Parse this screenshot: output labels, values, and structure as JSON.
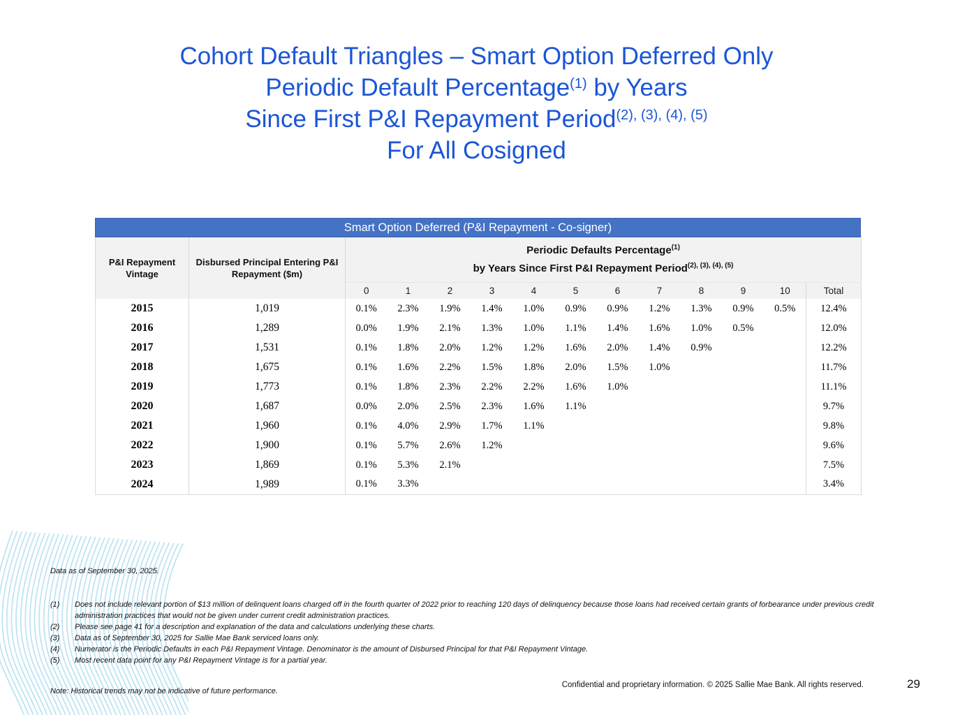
{
  "title": {
    "line1": "Cohort Default Triangles – Smart Option Deferred Only",
    "line2_text": "Periodic Default Percentage",
    "line2_sup": "(1)",
    "line2_tail": " by Years",
    "line3_text": "Since First P&I Repayment Period",
    "line3_sup": "(2), (3), (4), (5)",
    "line4": "For All Cosigned"
  },
  "table": {
    "banner": "Smart Option Deferred (P&I Repayment - Co-signer)",
    "vintage_header": "P&I Repayment Vintage",
    "disbursed_header": "Disbursed Principal Entering P&I Repayment ($m)",
    "group_header": {
      "line1": "Periodic Defaults Percentage",
      "line1_sup": "(1)",
      "line2": "by Years Since First P&I Repayment Period",
      "line2_sup": "(2), (3), (4), (5)"
    },
    "year_columns": [
      "0",
      "1",
      "2",
      "3",
      "4",
      "5",
      "6",
      "7",
      "8",
      "9",
      "10"
    ],
    "total_column": "Total",
    "rows": [
      {
        "vintage": "2015",
        "disbursed": "1,019",
        "values": [
          "0.1%",
          "2.3%",
          "1.9%",
          "1.4%",
          "1.0%",
          "0.9%",
          "0.9%",
          "1.2%",
          "1.3%",
          "0.9%",
          "0.5%"
        ],
        "total": "12.4%"
      },
      {
        "vintage": "2016",
        "disbursed": "1,289",
        "values": [
          "0.0%",
          "1.9%",
          "2.1%",
          "1.3%",
          "1.0%",
          "1.1%",
          "1.4%",
          "1.6%",
          "1.0%",
          "0.5%"
        ],
        "total": "12.0%"
      },
      {
        "vintage": "2017",
        "disbursed": "1,531",
        "values": [
          "0.1%",
          "1.8%",
          "2.0%",
          "1.2%",
          "1.2%",
          "1.6%",
          "2.0%",
          "1.4%",
          "0.9%"
        ],
        "total": "12.2%"
      },
      {
        "vintage": "2018",
        "disbursed": "1,675",
        "values": [
          "0.1%",
          "1.6%",
          "2.2%",
          "1.5%",
          "1.8%",
          "2.0%",
          "1.5%",
          "1.0%"
        ],
        "total": "11.7%"
      },
      {
        "vintage": "2019",
        "disbursed": "1,773",
        "values": [
          "0.1%",
          "1.8%",
          "2.3%",
          "2.2%",
          "2.2%",
          "1.6%",
          "1.0%"
        ],
        "total": "11.1%"
      },
      {
        "vintage": "2020",
        "disbursed": "1,687",
        "values": [
          "0.0%",
          "2.0%",
          "2.5%",
          "2.3%",
          "1.6%",
          "1.1%"
        ],
        "total": "9.7%"
      },
      {
        "vintage": "2021",
        "disbursed": "1,960",
        "values": [
          "0.1%",
          "4.0%",
          "2.9%",
          "1.7%",
          "1.1%"
        ],
        "total": "9.8%"
      },
      {
        "vintage": "2022",
        "disbursed": "1,900",
        "values": [
          "0.1%",
          "5.7%",
          "2.6%",
          "1.2%"
        ],
        "total": "9.6%"
      },
      {
        "vintage": "2023",
        "disbursed": "1,869",
        "values": [
          "0.1%",
          "5.3%",
          "2.1%"
        ],
        "total": "7.5%"
      },
      {
        "vintage": "2024",
        "disbursed": "1,989",
        "values": [
          "0.1%",
          "3.3%"
        ],
        "total": "3.4%"
      }
    ]
  },
  "footnotes": {
    "data_as_of": "Data as of September 30, 2025.",
    "items": [
      {
        "num": "(1)",
        "text": "Does not include relevant portion of $13 million of delinquent loans charged off in the fourth quarter of 2022 prior to reaching 120 days of delinquency because those loans had received certain grants of forbearance under previous credit administration practices that would not be given under current credit administration practices."
      },
      {
        "num": "(2)",
        "text": "Please see page 41 for a description and explanation of the data and calculations underlying these charts."
      },
      {
        "num": "(3)",
        "text": "Data as of September 30, 2025 for Sallie Mae Bank serviced loans only."
      },
      {
        "num": "(4)",
        "text": "Numerator is the Periodic Defaults in each P&I Repayment Vintage. Denominator is the amount of Disbursed Principal for that P&I Repayment Vintage."
      },
      {
        "num": "(5)",
        "text": "Most recent data point for any P&I Repayment Vintage is for a partial year."
      }
    ],
    "note": "Note: Historical trends may not be indicative of future performance."
  },
  "footer": {
    "confidential": "Confidential and proprietary information. © 2025 Sallie Mae Bank. All rights reserved.",
    "page_number": "29"
  },
  "colors": {
    "title_blue": "#1b55d7",
    "banner_blue": "#4472c4",
    "header_gray": "#f2f2f2",
    "border_gray": "#d9d9d9",
    "wave_blue": "#b7e1f3"
  }
}
